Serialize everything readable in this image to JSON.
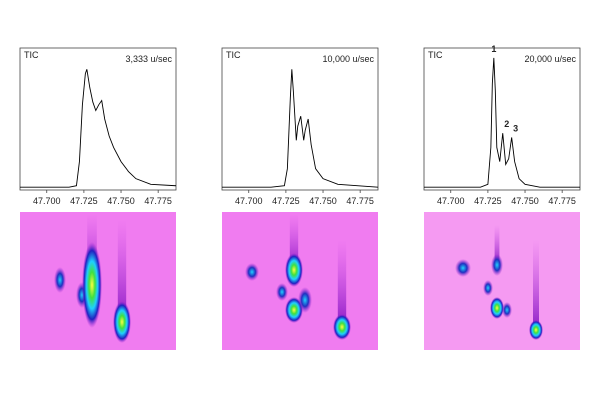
{
  "chart_data": [
    {
      "type": "line",
      "label": "TIC",
      "subtitle": "3,333 u/sec",
      "color": "#000000",
      "x": [
        47.682,
        47.7,
        47.715,
        47.72,
        47.722,
        47.724,
        47.726,
        47.727,
        47.729,
        47.731,
        47.733,
        47.735,
        47.737,
        47.739,
        47.742,
        47.745,
        47.75,
        47.755,
        47.76,
        47.77,
        47.787
      ],
      "values": [
        0.02,
        0.02,
        0.02,
        0.03,
        0.2,
        0.6,
        0.82,
        0.85,
        0.72,
        0.62,
        0.56,
        0.6,
        0.63,
        0.5,
        0.38,
        0.3,
        0.2,
        0.13,
        0.08,
        0.04,
        0.03
      ],
      "xlim": [
        47.682,
        47.787
      ],
      "ylim": [
        0,
        1
      ],
      "xticks": [
        {
          "value": 47.7,
          "label": "47.700"
        },
        {
          "value": 47.725,
          "label": "47.725"
        },
        {
          "value": 47.75,
          "label": "47.750"
        },
        {
          "value": 47.775,
          "label": "47.775"
        }
      ]
    },
    {
      "type": "line",
      "label": "TIC",
      "subtitle": "10,000 u/sec",
      "color": "#000000",
      "x": [
        47.682,
        47.715,
        47.724,
        47.726,
        47.728,
        47.729,
        47.73,
        47.732,
        47.733,
        47.735,
        47.737,
        47.738,
        47.74,
        47.742,
        47.745,
        47.75,
        47.76,
        47.787
      ],
      "values": [
        0.02,
        0.02,
        0.03,
        0.15,
        0.65,
        0.85,
        0.7,
        0.35,
        0.45,
        0.52,
        0.35,
        0.42,
        0.5,
        0.32,
        0.15,
        0.08,
        0.04,
        0.02
      ],
      "xlim": [
        47.682,
        47.787
      ],
      "ylim": [
        0,
        1
      ],
      "xticks": [
        {
          "value": 47.7,
          "label": "47.700"
        },
        {
          "value": 47.725,
          "label": "47.725"
        },
        {
          "value": 47.75,
          "label": "47.750"
        },
        {
          "value": 47.775,
          "label": "47.775"
        }
      ]
    },
    {
      "type": "line",
      "label": "TIC",
      "subtitle": "20,000 u/sec",
      "color": "#000000",
      "x": [
        47.682,
        47.72,
        47.725,
        47.727,
        47.728,
        47.729,
        47.73,
        47.731,
        47.733,
        47.735,
        47.737,
        47.739,
        47.741,
        47.743,
        47.746,
        47.75,
        47.76,
        47.787
      ],
      "values": [
        0.02,
        0.02,
        0.04,
        0.3,
        0.75,
        0.93,
        0.7,
        0.3,
        0.2,
        0.4,
        0.18,
        0.22,
        0.37,
        0.2,
        0.08,
        0.04,
        0.02,
        0.02
      ],
      "xlim": [
        47.682,
        47.787
      ],
      "ylim": [
        0,
        1
      ],
      "xticks": [
        {
          "value": 47.7,
          "label": "47.700"
        },
        {
          "value": 47.725,
          "label": "47.725"
        },
        {
          "value": 47.75,
          "label": "47.750"
        },
        {
          "value": 47.775,
          "label": "47.775"
        }
      ],
      "annotations": [
        {
          "text": "1",
          "x": 47.729,
          "y": 0.93
        },
        {
          "text": "2",
          "x": 47.735,
          "y": 0.4
        },
        {
          "text": "3",
          "x": 47.741,
          "y": 0.37
        }
      ]
    }
  ]
}
